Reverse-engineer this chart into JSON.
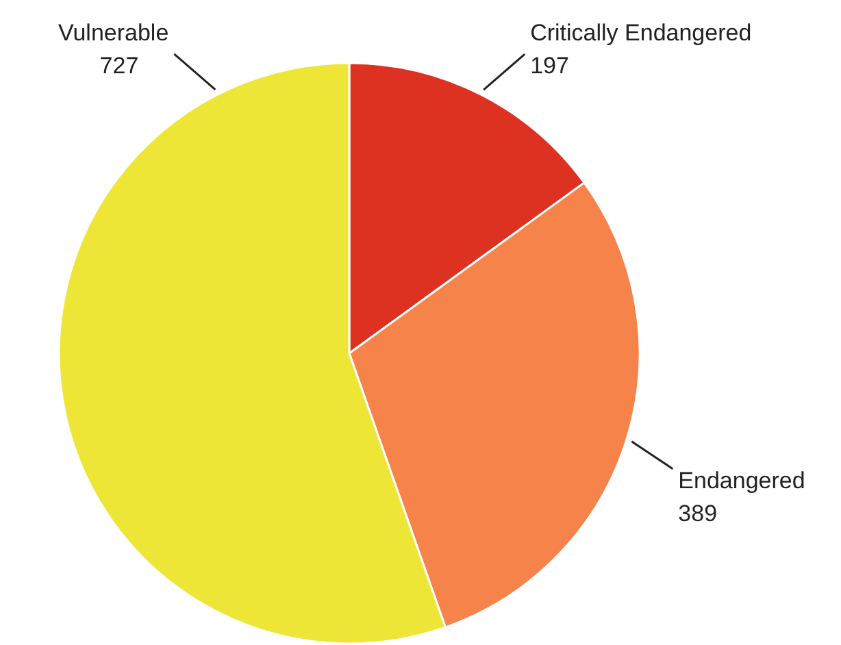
{
  "chart_data": {
    "type": "pie",
    "categories": [
      "Critically Endangered",
      "Endangered",
      "Vulnerable"
    ],
    "values": [
      197,
      389,
      727
    ],
    "colors": [
      "#dd3222",
      "#f5834a",
      "#eee636"
    ],
    "data_labels": true
  }
}
